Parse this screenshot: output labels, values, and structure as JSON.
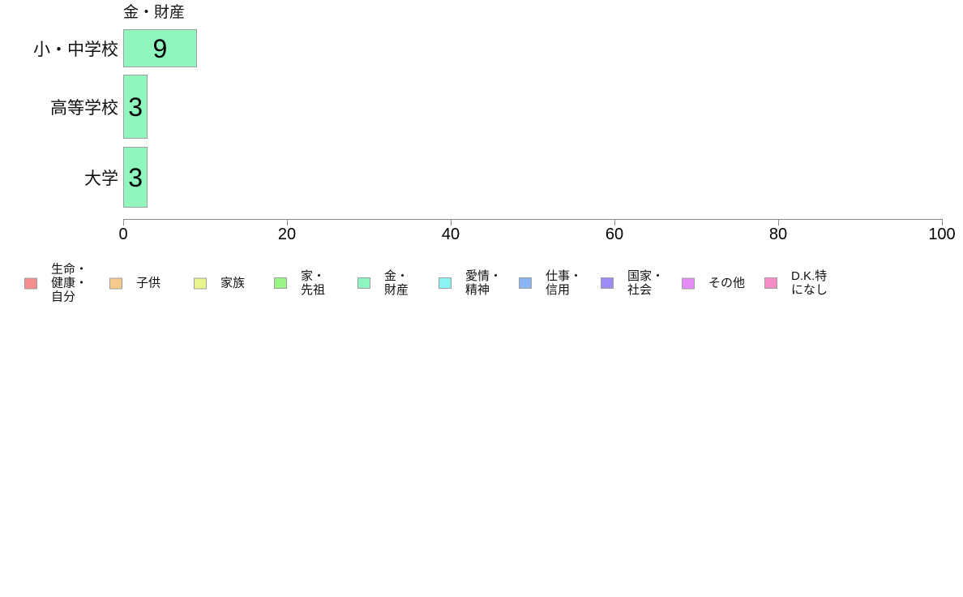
{
  "chart_data": {
    "type": "bar",
    "orientation": "horizontal",
    "title": "金・財産",
    "categories": [
      "小・中学校",
      "高等学校",
      "大学"
    ],
    "values": [
      9,
      3,
      3
    ],
    "bar_value_labels": [
      "9",
      "3",
      "3"
    ],
    "xlabel": "",
    "ylabel": "",
    "xlim": [
      0,
      100
    ],
    "xticks": [
      0,
      20,
      40,
      60,
      80,
      100
    ],
    "grid": false,
    "bar_color": "#8ff7bd",
    "bar_border_color": "#9e9e9e",
    "axis_color": "#888888",
    "legend_position": "bottom",
    "legend": [
      {
        "label": "生命・健康・自分",
        "lines": [
          "生命・",
          "健康・",
          "自分"
        ],
        "color": "#f58d8d"
      },
      {
        "label": "子供",
        "lines": [
          "子供"
        ],
        "color": "#f7ca8c"
      },
      {
        "label": "家族",
        "lines": [
          "家族"
        ],
        "color": "#e9f58c"
      },
      {
        "label": "家・先祖",
        "lines": [
          "家・",
          "先祖"
        ],
        "color": "#99f583"
      },
      {
        "label": "金・財産",
        "lines": [
          "金・",
          "財産"
        ],
        "color": "#8cf5c1"
      },
      {
        "label": "愛情・精神",
        "lines": [
          "愛情・",
          "精神"
        ],
        "color": "#8cf3f5"
      },
      {
        "label": "仕事・信用",
        "lines": [
          "仕事・",
          "信用"
        ],
        "color": "#8cb4f5"
      },
      {
        "label": "国家・社会",
        "lines": [
          "国家・",
          "社会"
        ],
        "color": "#9e8cf5"
      },
      {
        "label": "その他",
        "lines": [
          "その他"
        ],
        "color": "#e48cf5"
      },
      {
        "label": "D.K.特になし",
        "lines": [
          "D.K.特",
          "になし"
        ],
        "color": "#f58cc5"
      }
    ]
  }
}
